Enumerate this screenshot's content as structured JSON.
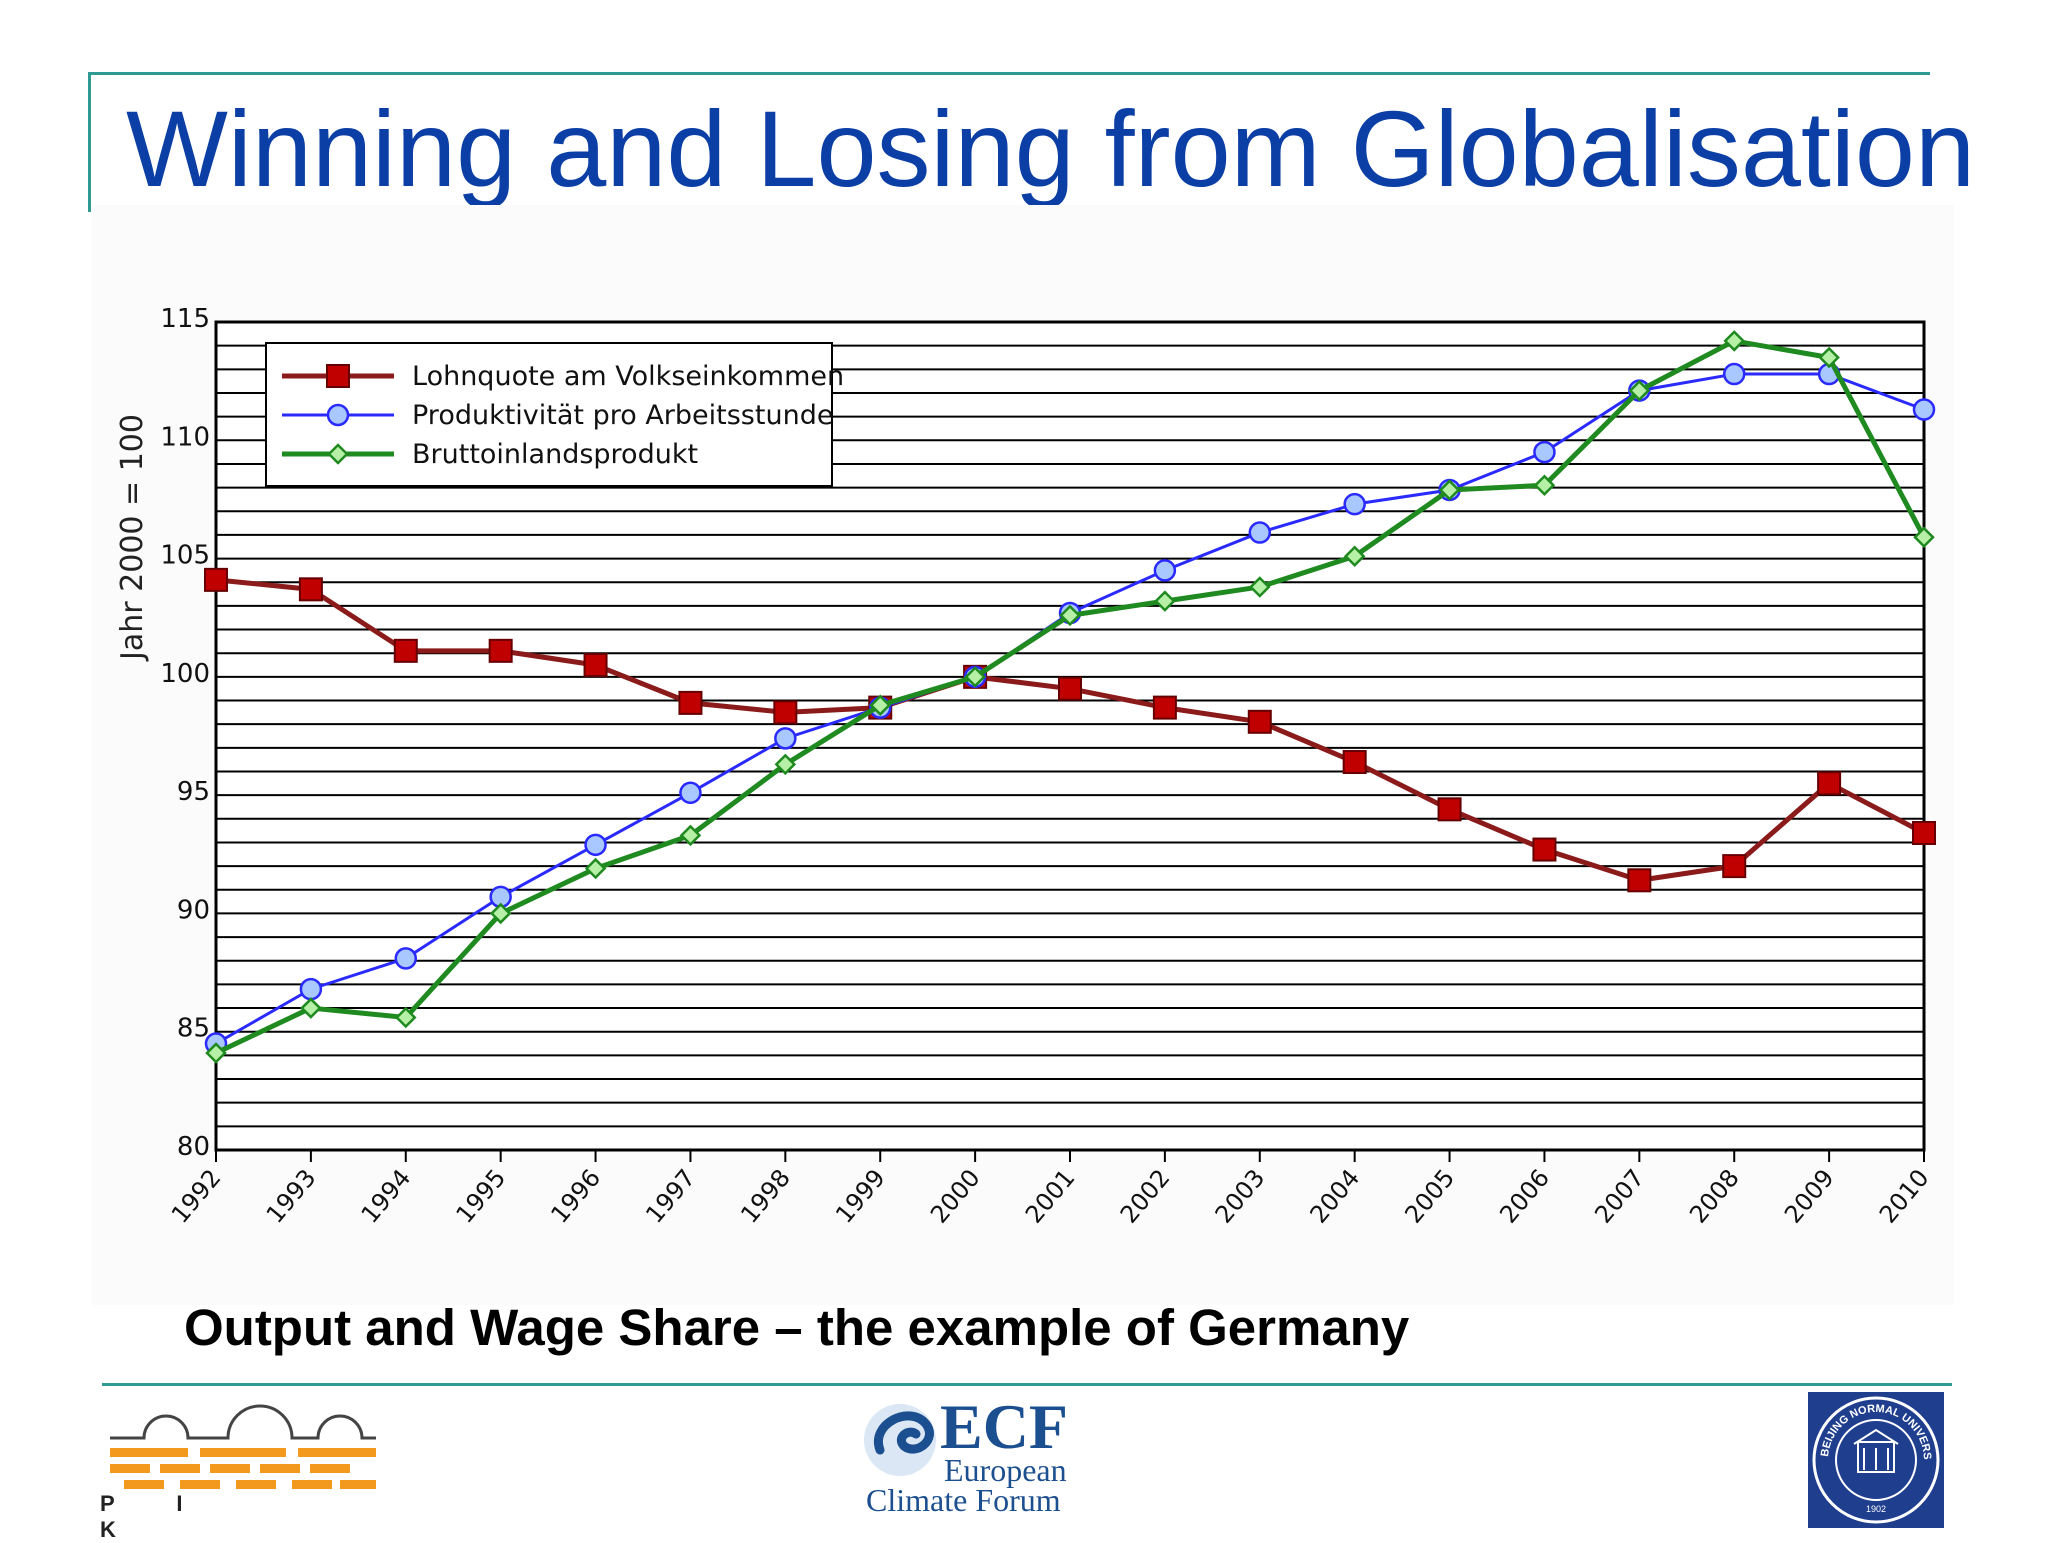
{
  "slide": {
    "title": "Winning and Losing from Globalisation",
    "subtitle": "Output and Wage Share – the example of Germany"
  },
  "logos": {
    "pik": "P I K",
    "ecf_abbr": "ECF",
    "ecf_line1": "European",
    "ecf_line2": "Climate Forum",
    "bnu": "BEIJING NORMAL UNIVERSITY",
    "bnu_year": "1902"
  },
  "colors": {
    "title": "#0b3fa6",
    "rule": "#2f9a91",
    "wage": "#c00000",
    "wage_line": "#8b1a1a",
    "productivity": "#2a2aff",
    "productivity_fill": "#a8c8ff",
    "gdp": "#1f8a1f",
    "gdp_fill": "#b6f0a6"
  },
  "chart_data": {
    "type": "line",
    "title": "",
    "xlabel": "",
    "ylabel": "Jahr 2000 = 100",
    "categories": [
      "1992",
      "1993",
      "1994",
      "1995",
      "1996",
      "1997",
      "1998",
      "1999",
      "2000",
      "2001",
      "2002",
      "2003",
      "2004",
      "2005",
      "2006",
      "2007",
      "2008",
      "2009",
      "2010"
    ],
    "ylim": [
      80,
      115
    ],
    "yticks": [
      80,
      85,
      90,
      95,
      100,
      105,
      110,
      115
    ],
    "grid": true,
    "legend_position": "top-left",
    "series": [
      {
        "name": "Lohnquote am Volkseinkommen",
        "marker": "square",
        "values": [
          104.1,
          103.7,
          101.1,
          101.1,
          100.5,
          98.9,
          98.5,
          98.7,
          100.0,
          99.5,
          98.7,
          98.1,
          96.4,
          94.4,
          92.7,
          91.4,
          92.0,
          95.5,
          93.4
        ]
      },
      {
        "name": "Produktivität pro Arbeitsstunde",
        "marker": "circle",
        "values": [
          84.5,
          86.8,
          88.1,
          90.7,
          92.9,
          95.1,
          97.4,
          98.7,
          100.0,
          102.7,
          104.5,
          106.1,
          107.3,
          107.9,
          109.5,
          112.1,
          112.8,
          112.8,
          111.3
        ]
      },
      {
        "name": "Bruttoinlandsprodukt",
        "marker": "diamond",
        "values": [
          84.1,
          86.0,
          85.6,
          90.0,
          91.9,
          93.3,
          96.3,
          98.8,
          100.0,
          102.6,
          103.2,
          103.8,
          105.1,
          107.9,
          108.1,
          112.1,
          114.2,
          113.5,
          105.9
        ]
      }
    ]
  }
}
